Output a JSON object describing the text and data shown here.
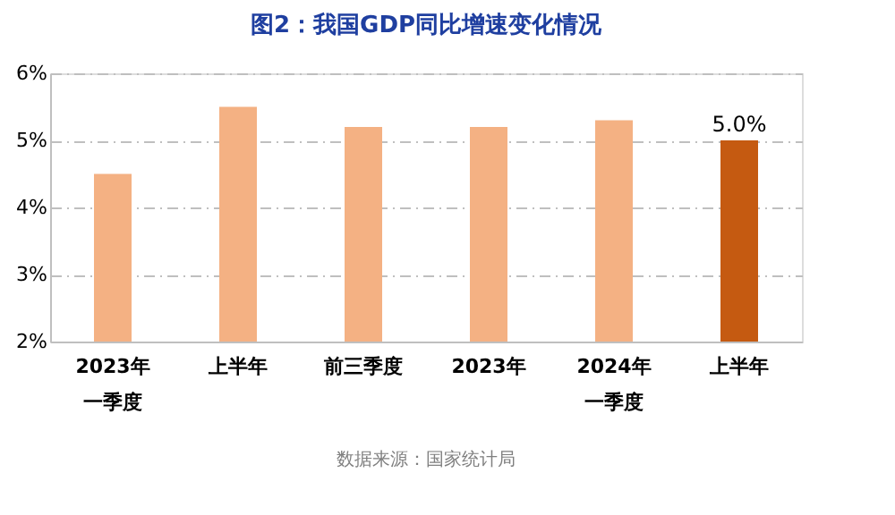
{
  "chart_data": {
    "type": "bar",
    "title": "图2：我国GDP同比增速变化情况",
    "categories": [
      "2023年一季度",
      "上半年",
      "前三季度",
      "2023年",
      "2024年一季度",
      "上半年"
    ],
    "values": [
      4.5,
      5.5,
      5.2,
      5.2,
      5.3,
      5.0
    ],
    "colors": [
      "#f4b183",
      "#f4b183",
      "#f4b183",
      "#f4b183",
      "#f4b183",
      "#c55a11"
    ],
    "value_labels": [
      null,
      null,
      null,
      null,
      null,
      "5.0%"
    ],
    "ylim": [
      2,
      6
    ],
    "yticks": [
      {
        "value": 2,
        "label": "2%"
      },
      {
        "value": 3,
        "label": "3%"
      },
      {
        "value": 4,
        "label": "4%"
      },
      {
        "value": 5,
        "label": "5%"
      },
      {
        "value": 6,
        "label": "6%"
      }
    ],
    "grid": "y",
    "legend": false,
    "annotations": [
      "数据来源：国家统计局"
    ]
  }
}
